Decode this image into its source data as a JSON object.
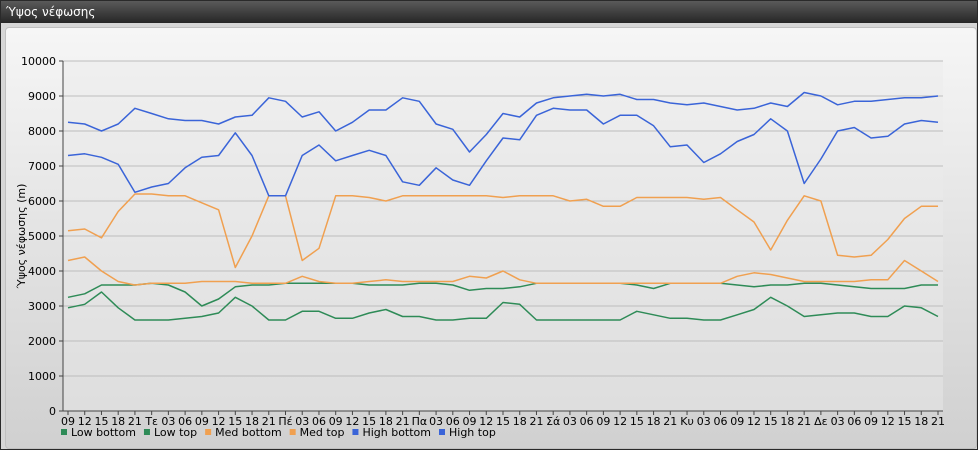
{
  "window": {
    "title": "Ύψος νέφωσης"
  },
  "chart_data": {
    "type": "line",
    "ylabel": "Ύψος νέφωσης (m)",
    "ylim": [
      0,
      10000
    ],
    "yticks": [
      0,
      1000,
      2000,
      3000,
      4000,
      5000,
      6000,
      7000,
      8000,
      9000,
      10000
    ],
    "grid": "horizontal",
    "legend_position": "bottom-left",
    "x": [
      "09",
      "12",
      "15",
      "18",
      "21",
      "Τε",
      "03",
      "06",
      "09",
      "12",
      "15",
      "18",
      "21",
      "Πέ",
      "03",
      "06",
      "09",
      "12",
      "15",
      "18",
      "21",
      "Πα",
      "03",
      "06",
      "09",
      "12",
      "15",
      "18",
      "21",
      "Σά",
      "03",
      "06",
      "09",
      "12",
      "15",
      "18",
      "21",
      "Κυ",
      "03",
      "06",
      "09",
      "12",
      "15",
      "18",
      "21",
      "Δε",
      "03",
      "06",
      "09",
      "12",
      "15",
      "18",
      "21"
    ],
    "series": [
      {
        "name": "Low bottom",
        "color": "#2e8b57",
        "values": [
          2950,
          3050,
          3400,
          2950,
          2600,
          2600,
          2600,
          2650,
          2700,
          2800,
          3250,
          3000,
          2600,
          2600,
          2850,
          2850,
          2650,
          2650,
          2800,
          2900,
          2700,
          2700,
          2600,
          2600,
          2650,
          2650,
          3100,
          3050,
          2600,
          2600,
          2600,
          2600,
          2600,
          2600,
          2850,
          2750,
          2650,
          2650,
          2600,
          2600,
          2750,
          2900,
          3250,
          3000,
          2700,
          2750,
          2800,
          2800,
          2700,
          2700,
          3000,
          2950,
          2700
        ]
      },
      {
        "name": "Low top",
        "color": "#2e8b57",
        "values": [
          3250,
          3350,
          3600,
          3600,
          3600,
          3650,
          3600,
          3400,
          3000,
          3200,
          3550,
          3600,
          3600,
          3650,
          3650,
          3650,
          3650,
          3650,
          3600,
          3600,
          3600,
          3650,
          3650,
          3600,
          3450,
          3500,
          3500,
          3550,
          3650,
          3650,
          3650,
          3650,
          3650,
          3650,
          3600,
          3500,
          3650,
          3650,
          3650,
          3650,
          3600,
          3550,
          3600,
          3600,
          3650,
          3650,
          3600,
          3550,
          3500,
          3500,
          3500,
          3600,
          3600
        ]
      },
      {
        "name": "Med bottom",
        "color": "#f0a050",
        "values": [
          4300,
          4400,
          4000,
          3700,
          3600,
          3650,
          3650,
          3650,
          3700,
          3700,
          3700,
          3650,
          3650,
          3650,
          3850,
          3700,
          3650,
          3650,
          3700,
          3750,
          3700,
          3700,
          3700,
          3700,
          3850,
          3800,
          4000,
          3750,
          3650,
          3650,
          3650,
          3650,
          3650,
          3650,
          3650,
          3650,
          3650,
          3650,
          3650,
          3650,
          3850,
          3950,
          3900,
          3800,
          3700,
          3700,
          3700,
          3700,
          3750,
          3750,
          4300,
          4000,
          3700
        ]
      },
      {
        "name": "Med top",
        "color": "#f0a050",
        "values": [
          5150,
          5200,
          4950,
          5700,
          6200,
          6200,
          6150,
          6150,
          5950,
          5750,
          4100,
          5000,
          6150,
          6150,
          4300,
          4650,
          6150,
          6150,
          6100,
          6000,
          6150,
          6150,
          6150,
          6150,
          6150,
          6150,
          6100,
          6150,
          6150,
          6150,
          6000,
          6050,
          5850,
          5850,
          6100,
          6100,
          6100,
          6100,
          6050,
          6100,
          5750,
          5400,
          4600,
          5450,
          6150,
          6000,
          4450,
          4400,
          4450,
          4900,
          5500,
          5850,
          5850
        ]
      },
      {
        "name": "High bottom",
        "color": "#3a64d8",
        "values": [
          7300,
          7350,
          7250,
          7050,
          6250,
          6400,
          6500,
          6950,
          7250,
          7300,
          7950,
          7300,
          6150,
          6150,
          7300,
          7600,
          7150,
          7300,
          7450,
          7300,
          6550,
          6450,
          6950,
          6600,
          6450,
          7150,
          7800,
          7750,
          8450,
          8650,
          8600,
          8600,
          8200,
          8450,
          8450,
          8150,
          7550,
          7600,
          7100,
          7350,
          7700,
          7900,
          8350,
          8000,
          6500,
          7200,
          8000,
          8100,
          7800,
          7850,
          8200,
          8300,
          8250
        ]
      },
      {
        "name": "High top",
        "color": "#3a64d8",
        "values": [
          8250,
          8200,
          8000,
          8200,
          8650,
          8500,
          8350,
          8300,
          8300,
          8200,
          8400,
          8450,
          8950,
          8850,
          8400,
          8550,
          8000,
          8250,
          8600,
          8600,
          8950,
          8850,
          8200,
          8050,
          7400,
          7900,
          8500,
          8400,
          8800,
          8950,
          9000,
          9050,
          9000,
          9050,
          8900,
          8900,
          8800,
          8750,
          8800,
          8700,
          8600,
          8650,
          8800,
          8700,
          9100,
          9000,
          8750,
          8850,
          8850,
          8900,
          8950,
          8950,
          9000
        ]
      }
    ]
  }
}
